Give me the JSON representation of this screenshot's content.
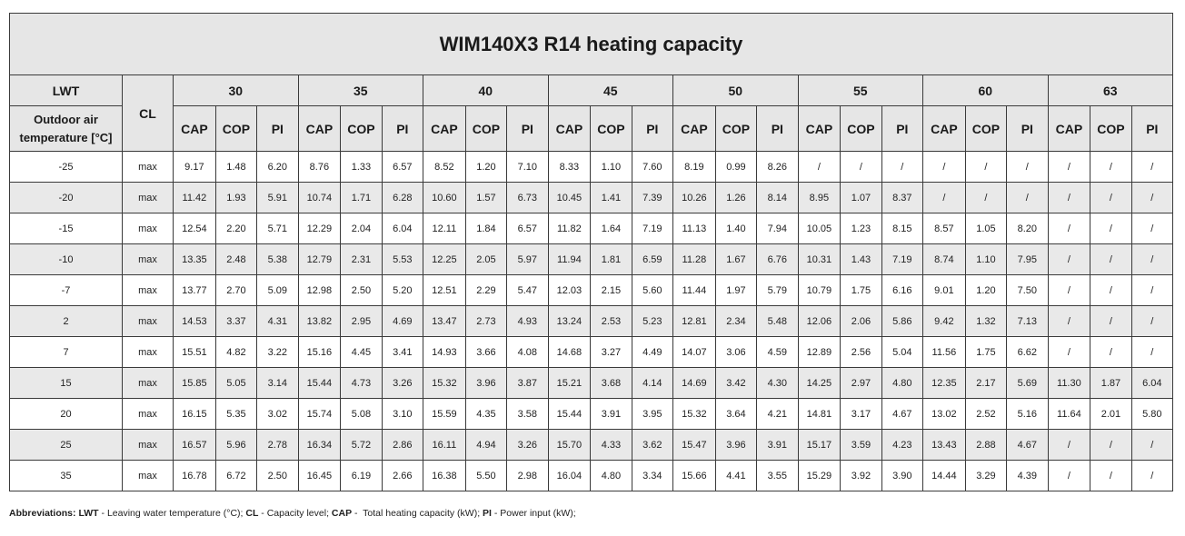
{
  "title": "WIM140X3 R14 heating capacity",
  "header": {
    "lwt_label": "LWT",
    "cl_label": "CL",
    "outdoor_label": "Outdoor air temperature [°C]",
    "lwt_values": [
      "30",
      "35",
      "40",
      "45",
      "50",
      "55",
      "60",
      "63"
    ],
    "sub_columns": [
      "CAP",
      "COP",
      "PI"
    ]
  },
  "rows": [
    {
      "temp": "-25",
      "cl": "max",
      "values": [
        "9.17",
        "1.48",
        "6.20",
        "8.76",
        "1.33",
        "6.57",
        "8.52",
        "1.20",
        "7.10",
        "8.33",
        "1.10",
        "7.60",
        "8.19",
        "0.99",
        "8.26",
        "/",
        "/",
        "/",
        "/",
        "/",
        "/",
        "/",
        "/",
        "/"
      ]
    },
    {
      "temp": "-20",
      "cl": "max",
      "values": [
        "11.42",
        "1.93",
        "5.91",
        "10.74",
        "1.71",
        "6.28",
        "10.60",
        "1.57",
        "6.73",
        "10.45",
        "1.41",
        "7.39",
        "10.26",
        "1.26",
        "8.14",
        "8.95",
        "1.07",
        "8.37",
        "/",
        "/",
        "/",
        "/",
        "/",
        "/"
      ]
    },
    {
      "temp": "-15",
      "cl": "max",
      "values": [
        "12.54",
        "2.20",
        "5.71",
        "12.29",
        "2.04",
        "6.04",
        "12.11",
        "1.84",
        "6.57",
        "11.82",
        "1.64",
        "7.19",
        "11.13",
        "1.40",
        "7.94",
        "10.05",
        "1.23",
        "8.15",
        "8.57",
        "1.05",
        "8.20",
        "/",
        "/",
        "/"
      ]
    },
    {
      "temp": "-10",
      "cl": "max",
      "values": [
        "13.35",
        "2.48",
        "5.38",
        "12.79",
        "2.31",
        "5.53",
        "12.25",
        "2.05",
        "5.97",
        "11.94",
        "1.81",
        "6.59",
        "11.28",
        "1.67",
        "6.76",
        "10.31",
        "1.43",
        "7.19",
        "8.74",
        "1.10",
        "7.95",
        "/",
        "/",
        "/"
      ]
    },
    {
      "temp": "-7",
      "cl": "max",
      "values": [
        "13.77",
        "2.70",
        "5.09",
        "12.98",
        "2.50",
        "5.20",
        "12.51",
        "2.29",
        "5.47",
        "12.03",
        "2.15",
        "5.60",
        "11.44",
        "1.97",
        "5.79",
        "10.79",
        "1.75",
        "6.16",
        "9.01",
        "1.20",
        "7.50",
        "/",
        "/",
        "/"
      ]
    },
    {
      "temp": "2",
      "cl": "max",
      "values": [
        "14.53",
        "3.37",
        "4.31",
        "13.82",
        "2.95",
        "4.69",
        "13.47",
        "2.73",
        "4.93",
        "13.24",
        "2.53",
        "5.23",
        "12.81",
        "2.34",
        "5.48",
        "12.06",
        "2.06",
        "5.86",
        "9.42",
        "1.32",
        "7.13",
        "/",
        "/",
        "/"
      ]
    },
    {
      "temp": "7",
      "cl": "max",
      "values": [
        "15.51",
        "4.82",
        "3.22",
        "15.16",
        "4.45",
        "3.41",
        "14.93",
        "3.66",
        "4.08",
        "14.68",
        "3.27",
        "4.49",
        "14.07",
        "3.06",
        "4.59",
        "12.89",
        "2.56",
        "5.04",
        "11.56",
        "1.75",
        "6.62",
        "/",
        "/",
        "/"
      ]
    },
    {
      "temp": "15",
      "cl": "max",
      "values": [
        "15.85",
        "5.05",
        "3.14",
        "15.44",
        "4.73",
        "3.26",
        "15.32",
        "3.96",
        "3.87",
        "15.21",
        "3.68",
        "4.14",
        "14.69",
        "3.42",
        "4.30",
        "14.25",
        "2.97",
        "4.80",
        "12.35",
        "2.17",
        "5.69",
        "11.30",
        "1.87",
        "6.04"
      ]
    },
    {
      "temp": "20",
      "cl": "max",
      "values": [
        "16.15",
        "5.35",
        "3.02",
        "15.74",
        "5.08",
        "3.10",
        "15.59",
        "4.35",
        "3.58",
        "15.44",
        "3.91",
        "3.95",
        "15.32",
        "3.64",
        "4.21",
        "14.81",
        "3.17",
        "4.67",
        "13.02",
        "2.52",
        "5.16",
        "11.64",
        "2.01",
        "5.80"
      ]
    },
    {
      "temp": "25",
      "cl": "max",
      "values": [
        "16.57",
        "5.96",
        "2.78",
        "16.34",
        "5.72",
        "2.86",
        "16.11",
        "4.94",
        "3.26",
        "15.70",
        "4.33",
        "3.62",
        "15.47",
        "3.96",
        "3.91",
        "15.17",
        "3.59",
        "4.23",
        "13.43",
        "2.88",
        "4.67",
        "/",
        "/",
        "/"
      ]
    },
    {
      "temp": "35",
      "cl": "max",
      "values": [
        "16.78",
        "6.72",
        "2.50",
        "16.45",
        "6.19",
        "2.66",
        "16.38",
        "5.50",
        "2.98",
        "16.04",
        "4.80",
        "3.34",
        "15.66",
        "4.41",
        "3.55",
        "15.29",
        "3.92",
        "3.90",
        "14.44",
        "3.29",
        "4.39",
        "/",
        "/",
        "/"
      ]
    }
  ],
  "footer": {
    "label": "Abbreviations:",
    "items": [
      {
        "abbr": "LWT",
        "text": " - Leaving water temperature (°C); "
      },
      {
        "abbr": "CL",
        "text": " - Capacity level; "
      },
      {
        "abbr": "CAP",
        "text": " -  Total heating capacity (kW); "
      },
      {
        "abbr": "PI",
        "text": " - Power input (kW);"
      }
    ]
  }
}
